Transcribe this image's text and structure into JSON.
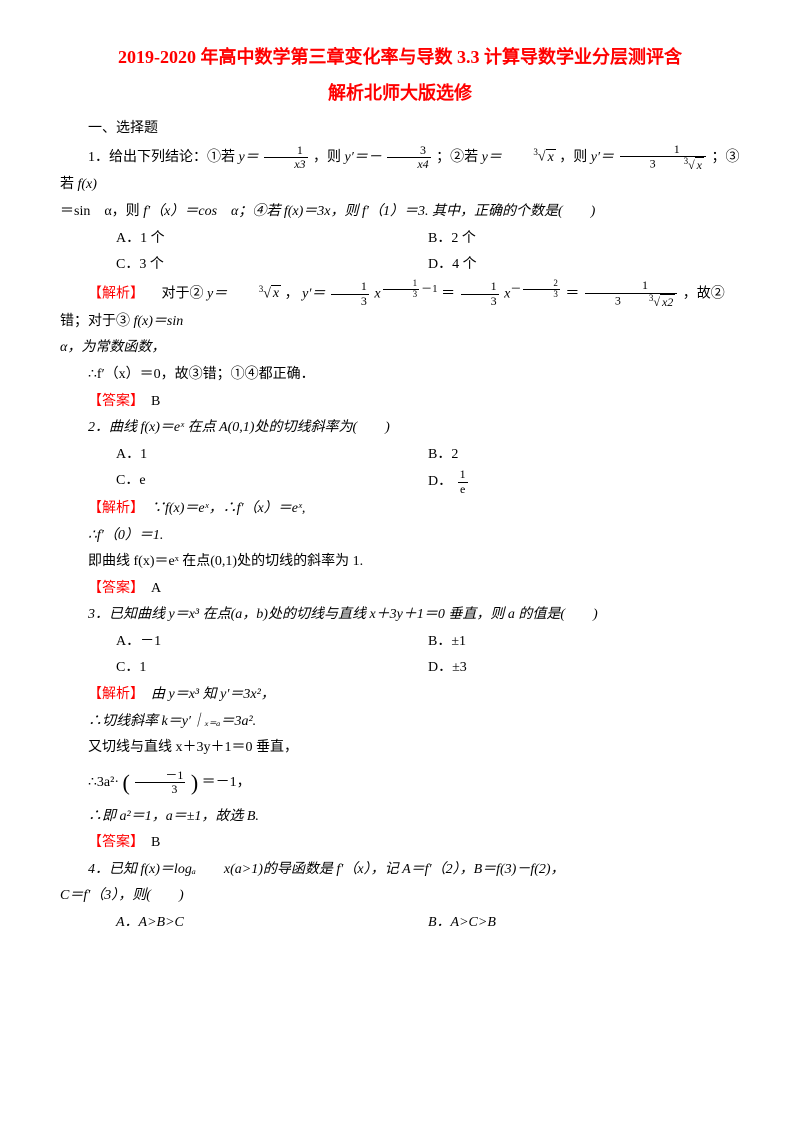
{
  "colors": {
    "accent": "#ff0000",
    "text": "#000000",
    "bg": "#ffffff"
  },
  "typography": {
    "body_fontsize_pt": 11,
    "title_fontsize_pt": 14,
    "title_weight": "bold"
  },
  "title": {
    "line1": "2019-2020 年高中数学第三章变化率与导数 3.3 计算导数学业分层测评含",
    "line2": "解析北师大版选修"
  },
  "section1": "一、选择题",
  "q1": {
    "stem_a": "1．给出下列结论：①若 ",
    "eq1a": "y＝",
    "eq1b": "1",
    "eq1c": "x3",
    "eq1d": "，则 ",
    "eq1e": "y′＝－",
    "eq1f": "3",
    "eq1g": "x4",
    "stem_b": "；②若 ",
    "eq2a": "y＝",
    "eq2root": "x",
    "eq2idx": "3",
    "eq2b": "，则 ",
    "eq2c": "y′＝",
    "eq2d": "1",
    "eq2e": "3",
    "eq2f": "x",
    "eq2g": "3",
    "stem_c": "；③若 ",
    "line2a": "＝sin　α，则 ",
    "fx": "f(x)",
    "line2b": "f′（x）＝cos　α；④若 ",
    "line2c": "f(x)＝3x，则 ",
    "line2d": "f′（1）＝3. 其中，正确的个数是(　　)",
    "optA": "A．1 个",
    "optB": "B．2 个",
    "optC": "C．3 个",
    "optD": "D．4 个",
    "sol_lbl": "【解析】",
    "sol_a": "　对于②",
    "sol_y": "y＝",
    "sol_root": "x",
    "sol_idx": "3",
    "sol_b": "，",
    "sol_c": "y′＝",
    "sol_frac1": "1",
    "sol_frac1d": "3",
    "sol_exp1a": "1",
    "sol_exp1b": "3",
    "sol_exp1c": "－1",
    "sol_eq": " ＝",
    "sol_frac2": "1",
    "sol_frac2d": "3",
    "sol_exp2a": "－",
    "sol_exp2b": "2",
    "sol_exp2c": "3",
    "sol_eq2": " ＝",
    "sol_frac3": "1",
    "sol_frac3d": "3",
    "sol_root2": "x2",
    "sol_idx2": "3",
    "sol_d": "，故②错；对于③",
    "sol_e": "f(x)＝sin",
    "sol_line2": "α，为常数函数，",
    "sol_line3": "∴f′（x）＝0，故③错；①④都正确．",
    "ans_lbl": "【答案】",
    "ans": "　B"
  },
  "q2": {
    "stem": "2．曲线 f(x)＝eˣ 在点 A(0,1)处的切线斜率为(　　)",
    "optA": "A．1",
    "optB": "B．2",
    "optC": "C．e",
    "optD_a": "D．",
    "optD_num": "1",
    "optD_den": "e",
    "sol_lbl": "【解析】",
    "sol": "　∵f(x)＝eˣ，∴f′（x）＝eˣ,",
    "sol2": "∴f′（0）＝1.",
    "sol3": "即曲线 f(x)＝eˣ 在点(0,1)处的切线的斜率为 1.",
    "ans_lbl": "【答案】",
    "ans": "　A"
  },
  "q3": {
    "stem": "3．已知曲线 y＝x³ 在点(a，b)处的切线与直线 x＋3y＋1＝0 垂直，则 a 的值是(　　)",
    "optA": "A．－1",
    "optB": "B．±1",
    "optC": "C．1",
    "optD": "D．±3",
    "sol_lbl": "【解析】",
    "sol1": "　由 y＝x³ 知 y′＝3x²，",
    "sol2": "∴切线斜率 k＝y′｜ₓ₌ₐ＝3a².",
    "sol3": "又切线与直线 x＋3y＋1＝0 垂直，",
    "sol4a": "∴3a²·",
    "sol4num": "1",
    "sol4den": "3",
    "sol4sign": "－",
    "sol4b": "＝－1，",
    "sol5": "∴即 a²＝1，a＝±1，故选 B.",
    "ans_lbl": "【答案】",
    "ans": "　B"
  },
  "q4": {
    "stem1": "4．已知 f(x)＝logₐ　　x(a>1)的导函数是 f′（x），记 A＝f′（2），B＝f(3)－f(2)，",
    "stem2": "C＝f′（3），则(　　)",
    "optA": "A．A>B>C",
    "optB": "B．A>C>B"
  }
}
